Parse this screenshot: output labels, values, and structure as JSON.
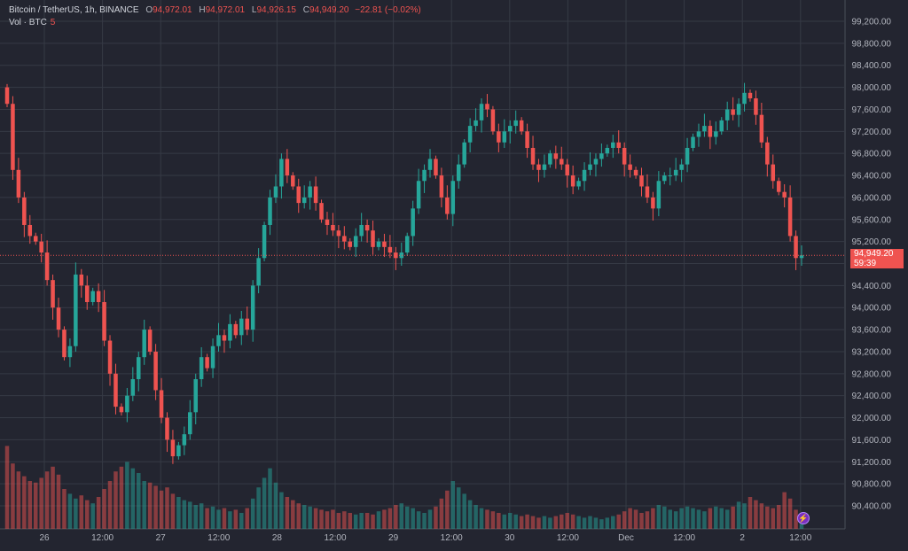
{
  "legend": {
    "symbol": "Bitcoin / TetherUS, 1h, BINANCE",
    "open_label": "O",
    "open": "94,972.01",
    "high_label": "H",
    "high": "94,972.01",
    "low_label": "L",
    "low": "94,926.15",
    "close_label": "C",
    "close": "94,949.20",
    "change": "−22.81 (−0.02%)",
    "volume_label": "Vol · BTC",
    "volume": "5"
  },
  "last_price": {
    "price": "94,949.20",
    "countdown": "59:39"
  },
  "colors": {
    "up": "#26a69a",
    "down": "#ef5350",
    "background": "#232530",
    "grid": "#363a45",
    "text": "#b2b5be"
  },
  "icons": {
    "replay": "lightning-bolt-icon"
  },
  "chart_data": {
    "type": "candlestick",
    "symbol": "BTCUSDT",
    "interval": "1h",
    "ylim": [
      90200,
      99400
    ],
    "y_ticks": [
      "99,200.00",
      "98,800.00",
      "98,400.00",
      "98,000.00",
      "97,600.00",
      "97,200.00",
      "96,800.00",
      "96,400.00",
      "96,000.00",
      "95,600.00",
      "95,200.00",
      "94,800.00",
      "94,400.00",
      "94,000.00",
      "93,600.00",
      "93,200.00",
      "92,800.00",
      "92,400.00",
      "92,000.00",
      "91,600.00",
      "91,200.00",
      "90,800.00",
      "90,400.00"
    ],
    "x_ticks": [
      "26",
      "12:00",
      "27",
      "12:00",
      "28",
      "12:00",
      "29",
      "12:00",
      "30",
      "12:00",
      "Dec",
      "12:00",
      "2",
      "12:00"
    ],
    "last": 94949.2,
    "closes": [
      97700,
      96500,
      96000,
      95500,
      95300,
      95200,
      95000,
      94500,
      94000,
      93600,
      93100,
      93300,
      94600,
      94400,
      94100,
      94300,
      94100,
      93400,
      92800,
      92200,
      92100,
      92400,
      92700,
      93100,
      93600,
      93200,
      92500,
      92000,
      91600,
      91300,
      91500,
      91700,
      92100,
      92700,
      93100,
      92900,
      93300,
      93500,
      93400,
      93700,
      93500,
      93800,
      93600,
      94400,
      94900,
      95500,
      96000,
      96200,
      96700,
      96400,
      96200,
      95900,
      96000,
      96200,
      95900,
      95600,
      95500,
      95400,
      95300,
      95200,
      95100,
      95300,
      95500,
      95400,
      95100,
      95200,
      95100,
      95000,
      94900,
      95000,
      95300,
      95800,
      96300,
      96500,
      96700,
      96400,
      96000,
      95700,
      96300,
      96600,
      97000,
      97300,
      97400,
      97700,
      97600,
      97200,
      97000,
      97200,
      97300,
      97400,
      97200,
      96900,
      96600,
      96500,
      96600,
      96800,
      96700,
      96600,
      96400,
      96200,
      96300,
      96500,
      96600,
      96700,
      96800,
      96900,
      97000,
      96900,
      96600,
      96500,
      96400,
      96200,
      96000,
      95800,
      96300,
      96400,
      96400,
      96500,
      96600,
      96900,
      97100,
      97200,
      97300,
      97100,
      97200,
      97400,
      97600,
      97500,
      97700,
      97900,
      97800,
      97500,
      97000,
      96600,
      96300,
      96100,
      96000,
      95300,
      94900,
      94949.2
    ],
    "volumes": [
      5.2,
      4.1,
      3.6,
      3.3,
      3.0,
      2.9,
      3.2,
      3.6,
      3.9,
      3.4,
      2.5,
      2.2,
      1.9,
      2.1,
      1.8,
      1.6,
      2.0,
      2.5,
      3.0,
      3.6,
      3.9,
      4.2,
      3.8,
      3.5,
      3.0,
      2.9,
      2.7,
      2.4,
      2.6,
      2.2,
      2.0,
      1.8,
      1.7,
      1.5,
      1.6,
      1.3,
      1.4,
      1.2,
      1.3,
      1.1,
      1.2,
      1.0,
      1.3,
      1.9,
      2.6,
      3.2,
      3.8,
      2.9,
      2.3,
      2.0,
      1.8,
      1.6,
      1.5,
      1.4,
      1.3,
      1.2,
      1.1,
      1.2,
      1.0,
      1.1,
      1.0,
      0.9,
      1.0,
      1.0,
      0.9,
      1.1,
      1.2,
      1.3,
      1.5,
      1.6,
      1.4,
      1.3,
      1.1,
      1.0,
      1.2,
      1.4,
      1.9,
      2.4,
      3.0,
      2.6,
      2.2,
      1.8,
      1.5,
      1.3,
      1.2,
      1.1,
      1.0,
      0.9,
      1.0,
      0.9,
      0.8,
      0.9,
      0.8,
      0.7,
      0.8,
      0.7,
      0.8,
      0.9,
      1.0,
      0.9,
      0.8,
      0.7,
      0.8,
      0.7,
      0.6,
      0.7,
      0.8,
      0.9,
      1.1,
      1.3,
      1.2,
      1.0,
      1.1,
      1.3,
      1.5,
      1.4,
      1.2,
      1.1,
      1.3,
      1.4,
      1.3,
      1.2,
      1.1,
      1.3,
      1.4,
      1.3,
      1.2,
      1.4,
      1.7,
      1.6,
      2.0,
      1.8,
      1.6,
      1.4,
      1.3,
      1.5,
      2.3,
      1.9,
      1.2,
      0.3
    ]
  }
}
